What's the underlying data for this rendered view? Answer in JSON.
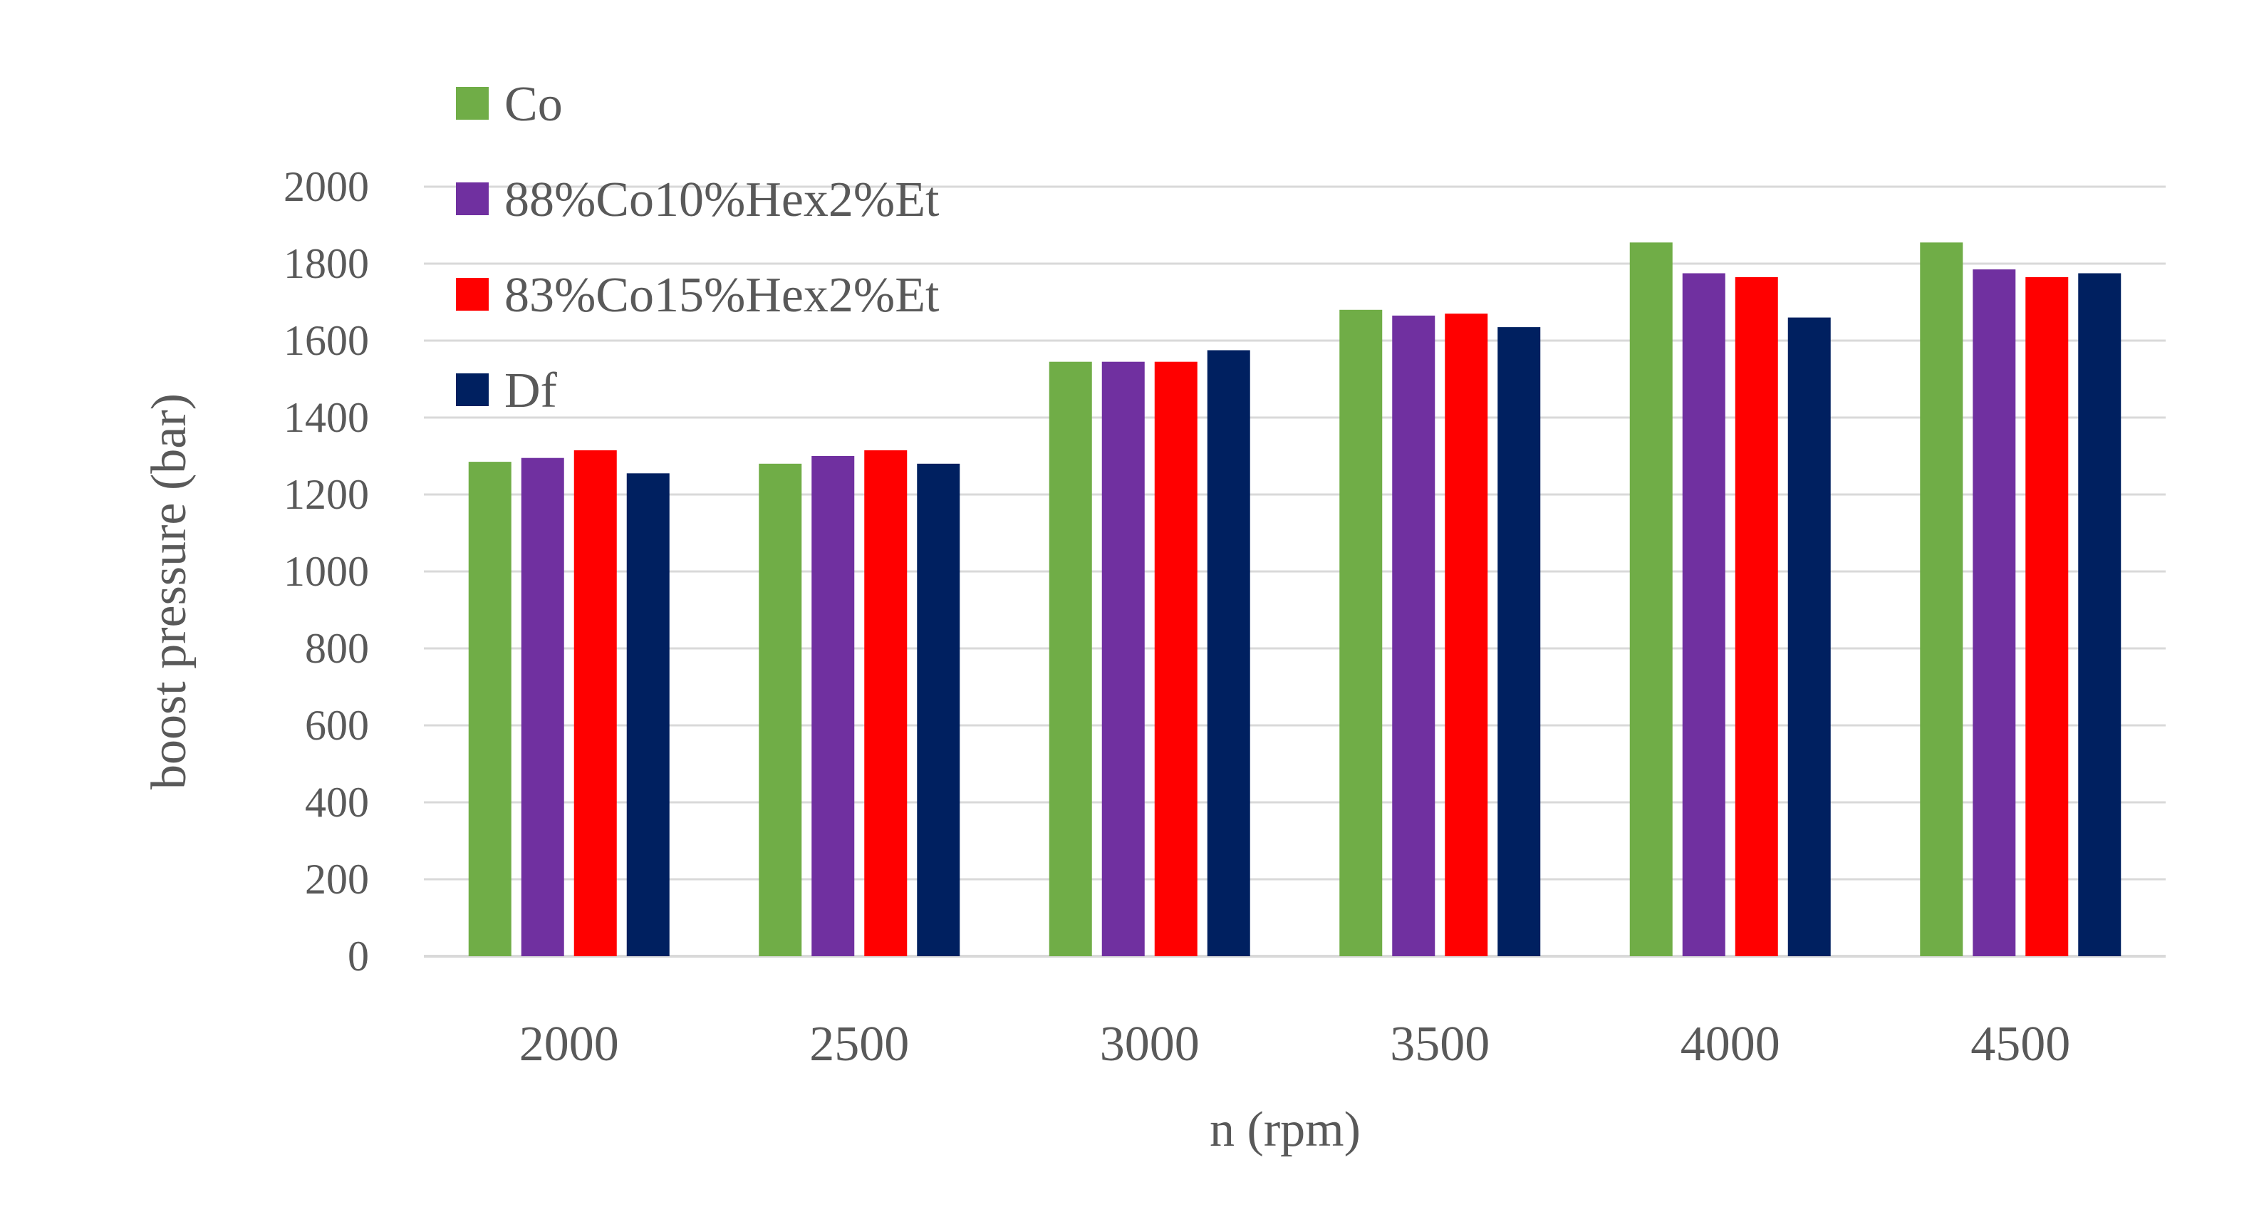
{
  "chart_data": {
    "type": "bar",
    "title": "",
    "xlabel": "n (rpm)",
    "ylabel": "boost pressure (bar)",
    "ylim": [
      0,
      2000
    ],
    "yticks": [
      0,
      200,
      400,
      600,
      800,
      1000,
      1200,
      1400,
      1600,
      1800,
      2000
    ],
    "grid": true,
    "legend_position": "top-left",
    "categories": [
      "2000",
      "2500",
      "3000",
      "3500",
      "4000",
      "4500"
    ],
    "series": [
      {
        "name": "Co",
        "color": "#70AD47",
        "values": [
          1285,
          1280,
          1545,
          1680,
          1855,
          1855
        ]
      },
      {
        "name": "88%Co10%Hex2%Et",
        "color": "#7030A0",
        "values": [
          1295,
          1300,
          1545,
          1665,
          1775,
          1785
        ]
      },
      {
        "name": "83%Co15%Hex2%Et",
        "color": "#FF0000",
        "values": [
          1315,
          1315,
          1545,
          1670,
          1765,
          1765
        ]
      },
      {
        "name": "Df",
        "color": "#002060",
        "values": [
          1255,
          1280,
          1575,
          1635,
          1660,
          1775
        ]
      }
    ]
  }
}
